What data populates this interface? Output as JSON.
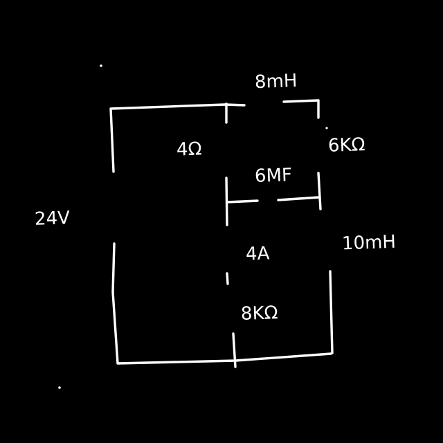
{
  "diagram": {
    "type": "handwritten-circuit",
    "background": "#000000",
    "ink": "#ffffff",
    "labels": {
      "source_voltage": "24V",
      "top_inductor": "8mH",
      "left_resistor": "4Ω",
      "right_resistor": "6KΩ",
      "capacitor": "6MF",
      "current_source": "4A",
      "right_inductor": "10mH",
      "bottom_resistor": "8KΩ"
    }
  }
}
